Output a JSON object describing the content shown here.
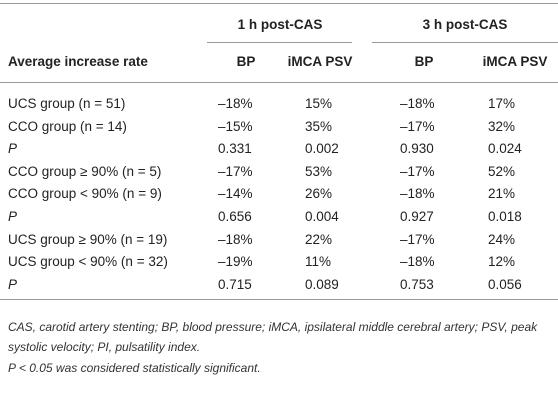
{
  "table": {
    "group_headers": [
      "1 h post-CAS",
      "3 h post-CAS"
    ],
    "row_header": "Average increase rate",
    "subheaders": [
      "BP",
      "iMCA PSV",
      "BP",
      "iMCA PSV"
    ],
    "rows": [
      [
        "UCS group (n = 51)",
        "–18%",
        "15%",
        "–18%",
        "17%"
      ],
      [
        "CCO group (n = 14)",
        "–15%",
        "35%",
        "–17%",
        "32%"
      ],
      [
        "P",
        "0.331",
        "0.002",
        "0.930",
        "0.024"
      ],
      [
        "CCO group ≥ 90% (n = 5)",
        "–17%",
        "53%",
        "–17%",
        "52%"
      ],
      [
        "CCO group < 90% (n = 9)",
        "–14%",
        "26%",
        "–18%",
        "21%"
      ],
      [
        "P",
        "0.656",
        "0.004",
        "0.927",
        "0.018"
      ],
      [
        "UCS group ≥ 90% (n = 19)",
        "–18%",
        "22%",
        "–17%",
        "24%"
      ],
      [
        "UCS group < 90% (n = 32)",
        "–19%",
        "11%",
        "–18%",
        "12%"
      ],
      [
        "P",
        "0.715",
        "0.089",
        "0.753",
        "0.056"
      ]
    ]
  },
  "footnotes": [
    "CAS, carotid artery stenting; BP, blood pressure; iMCA, ipsilateral middle cerebral artery; PSV, peak systolic velocity; PI, pulsatility index.",
    "P < 0.05 was considered statistically significant."
  ]
}
